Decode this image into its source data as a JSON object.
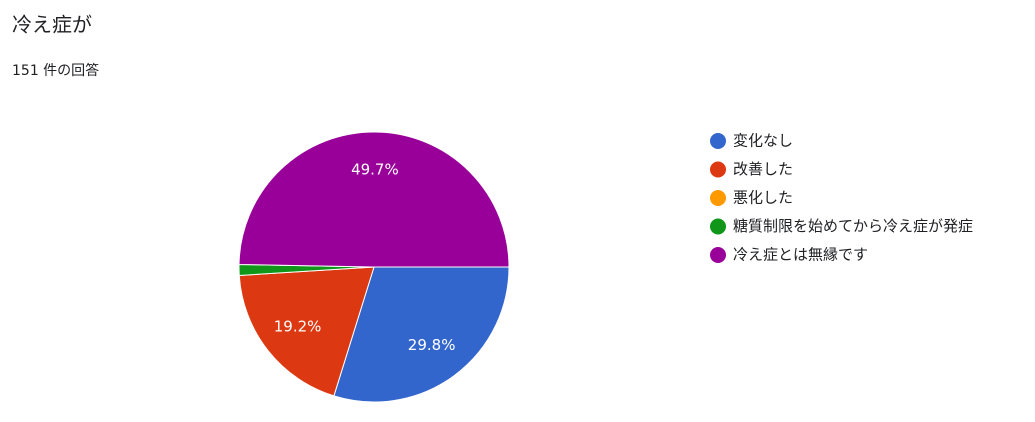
{
  "chart_data": {
    "type": "pie",
    "title": "冷え症が",
    "subtitle": "151 件の回答",
    "categories": [
      "変化なし",
      "改善した",
      "悪化した",
      "糖質制限を始めてから冷え症が発症",
      "冷え症とは無縁です"
    ],
    "values": [
      29.8,
      19.2,
      0,
      1.3,
      49.7
    ],
    "value_labels": [
      "29.8%",
      "19.2%",
      null,
      null,
      "49.7%"
    ],
    "colors": [
      "#3366cc",
      "#dc3912",
      "#ff9900",
      "#109618",
      "#990099"
    ],
    "legend": "right"
  }
}
